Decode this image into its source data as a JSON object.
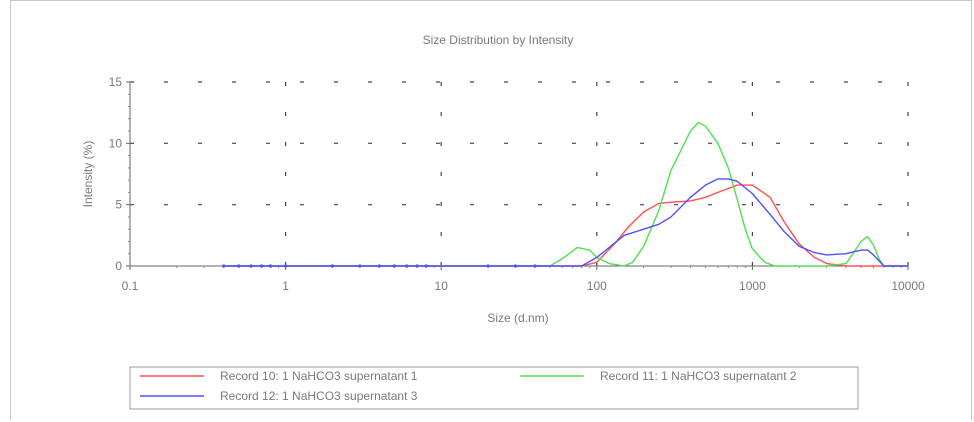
{
  "chart_data": {
    "type": "line",
    "title": "Size Distribution by Intensity",
    "xlabel": "Size (d.nm)",
    "ylabel": "Intensity (%)",
    "xscale": "log",
    "xlim": [
      0.1,
      10000
    ],
    "ylim": [
      0,
      15
    ],
    "xticks": [
      {
        "value": 0.1,
        "label": "0.1"
      },
      {
        "value": 1,
        "label": "1"
      },
      {
        "value": 10,
        "label": "10"
      },
      {
        "value": 100,
        "label": "100"
      },
      {
        "value": 1000,
        "label": "1000"
      },
      {
        "value": 10000,
        "label": "10000"
      }
    ],
    "yticks": [
      {
        "value": 0,
        "label": "0"
      },
      {
        "value": 5,
        "label": "5"
      },
      {
        "value": 10,
        "label": "10"
      },
      {
        "value": 15,
        "label": "15"
      }
    ],
    "grid": true,
    "legend_position": "bottom",
    "series": [
      {
        "name": "Record 10: 1 NaHCO3 supernatant 1",
        "color": "#ff5050",
        "x": [
          0.4,
          1,
          10,
          50,
          80,
          100,
          130,
          160,
          200,
          250,
          300,
          400,
          500,
          600,
          800,
          1000,
          1300,
          1600,
          2000,
          2500,
          3000,
          4000,
          5000,
          6000,
          7000,
          8000,
          10000
        ],
        "y": [
          0,
          0,
          0,
          0,
          0,
          0.3,
          1.8,
          3.2,
          4.4,
          5.1,
          5.2,
          5.3,
          5.6,
          6.0,
          6.6,
          6.6,
          5.6,
          3.6,
          1.8,
          0.7,
          0.2,
          0,
          0,
          0,
          0,
          0,
          0
        ]
      },
      {
        "name": "Record 11: 1 NaHCO3 supernatant 2",
        "color": "#50e050",
        "x": [
          0.4,
          1,
          10,
          50,
          60,
          75,
          90,
          100,
          120,
          150,
          170,
          200,
          250,
          300,
          400,
          450,
          500,
          600,
          700,
          800,
          900,
          1000,
          1200,
          1400,
          2000,
          3000,
          4000,
          5000,
          5500,
          6000,
          6500,
          7000,
          10000
        ],
        "y": [
          0,
          0,
          0,
          0,
          0.6,
          1.5,
          1.3,
          0.7,
          0.2,
          0,
          0.3,
          1.6,
          4.5,
          7.8,
          11.0,
          11.7,
          11.4,
          10.0,
          8.0,
          5.4,
          3.0,
          1.4,
          0.3,
          0,
          0,
          0,
          0.2,
          2.0,
          2.4,
          1.7,
          0.6,
          0,
          0
        ]
      },
      {
        "name": "Record 12: 1 NaHCO3 supernatant 3",
        "color": "#5050ff",
        "x": [
          0.4,
          1,
          10,
          50,
          80,
          100,
          120,
          150,
          200,
          250,
          300,
          400,
          500,
          600,
          700,
          800,
          1000,
          1300,
          1600,
          2000,
          2500,
          3000,
          4000,
          5000,
          5500,
          6000,
          7000,
          10000
        ],
        "y": [
          0,
          0,
          0,
          0,
          0,
          0.7,
          1.5,
          2.5,
          3.0,
          3.4,
          4.0,
          5.6,
          6.6,
          7.1,
          7.1,
          6.9,
          5.9,
          4.2,
          2.8,
          1.6,
          1.1,
          0.9,
          1.0,
          1.3,
          1.3,
          0.9,
          0,
          0
        ]
      }
    ]
  }
}
